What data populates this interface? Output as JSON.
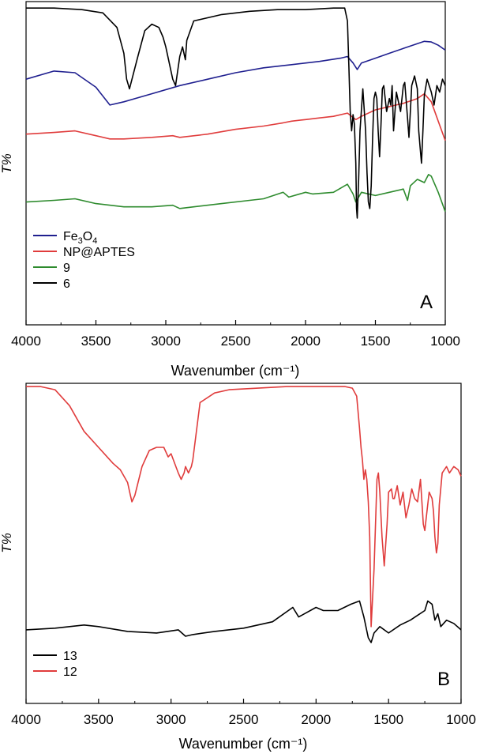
{
  "figure": {
    "panels": [
      {
        "panel_label": "A",
        "ylabel": "T%",
        "xlabel": "Wavenumber (cm⁻¹)"
      },
      {
        "panel_label": "B",
        "ylabel": "T%",
        "xlabel": "Wavenumber (cm⁻¹)"
      }
    ]
  },
  "chart_data": [
    {
      "type": "line",
      "panel_label": "A",
      "xlabel": "Wavenumber (cm⁻¹)",
      "ylabel": "T%",
      "xlim": [
        4000,
        1000
      ],
      "x_reversed": true,
      "ylim": [
        0,
        100
      ],
      "xticks": [
        4000,
        3500,
        3000,
        2500,
        2000,
        1500,
        1000
      ],
      "yticks_visible": false,
      "grid": false,
      "legend_position": "bottom-left",
      "series": [
        {
          "name": "Fe3O4",
          "legend_main": "Fe",
          "legend_sub1": "3",
          "legend_mid": "O",
          "legend_sub2": "4",
          "color": "#1f1f8f",
          "x": [
            4000,
            3800,
            3650,
            3500,
            3400,
            3300,
            3100,
            2900,
            2700,
            2500,
            2300,
            2100,
            1900,
            1750,
            1700,
            1660,
            1630,
            1600,
            1500,
            1400,
            1300,
            1200,
            1150,
            1100,
            1050,
            1000
          ],
          "y": [
            76,
            78.5,
            78,
            73.5,
            68,
            69,
            71.5,
            74,
            76,
            78,
            79.5,
            80.5,
            81.5,
            82.5,
            83,
            81,
            79,
            81,
            82.5,
            84,
            85.5,
            87,
            87.7,
            87.5,
            86.5,
            85
          ]
        },
        {
          "name": "NP@APTES",
          "color": "#e03c3c",
          "x": [
            4000,
            3800,
            3650,
            3500,
            3400,
            3300,
            3100,
            2950,
            2900,
            2700,
            2500,
            2300,
            2160,
            2100,
            2000,
            1900,
            1800,
            1700,
            1640,
            1600,
            1500,
            1400,
            1300,
            1200,
            1150,
            1100,
            1050,
            1000
          ],
          "y": [
            59,
            59.5,
            60,
            58.5,
            57.5,
            57.5,
            58,
            58.5,
            58,
            59,
            60.5,
            61.5,
            62.5,
            63,
            63.5,
            64,
            64.5,
            65.5,
            63.5,
            64.5,
            66.5,
            67.5,
            68.5,
            70,
            71.5,
            69,
            63,
            57
          ]
        },
        {
          "name": "9",
          "color": "#2e8b2e",
          "x": [
            4000,
            3800,
            3650,
            3500,
            3300,
            3100,
            2950,
            2900,
            2800,
            2600,
            2400,
            2300,
            2160,
            2120,
            2000,
            1950,
            1800,
            1700,
            1660,
            1640,
            1600,
            1500,
            1400,
            1300,
            1270,
            1250,
            1200,
            1150,
            1120,
            1100,
            1050,
            1000
          ],
          "y": [
            38,
            38.5,
            39,
            37.5,
            36.5,
            36.5,
            37,
            36,
            36.5,
            37.5,
            38.5,
            39,
            41,
            39.5,
            41,
            40.5,
            41,
            43.5,
            40.5,
            38,
            41,
            40,
            41,
            42,
            38.5,
            43,
            45,
            44,
            46.5,
            46,
            41,
            35
          ]
        },
        {
          "name": "6",
          "color": "#000000",
          "x": [
            4000,
            3800,
            3600,
            3450,
            3350,
            3300,
            3280,
            3260,
            3200,
            3150,
            3100,
            3050,
            3020,
            3000,
            2950,
            2930,
            2900,
            2880,
            2860,
            2850,
            2800,
            2600,
            2400,
            2200,
            2000,
            1800,
            1720,
            1700,
            1690,
            1680,
            1670,
            1660,
            1650,
            1640,
            1635,
            1630,
            1620,
            1610,
            1590,
            1570,
            1560,
            1550,
            1540,
            1530,
            1520,
            1510,
            1500,
            1490,
            1480,
            1470,
            1460,
            1450,
            1440,
            1420,
            1400,
            1390,
            1380,
            1370,
            1360,
            1350,
            1340,
            1320,
            1300,
            1290,
            1270,
            1260,
            1250,
            1240,
            1220,
            1200,
            1190,
            1180,
            1170,
            1160,
            1150,
            1130,
            1100,
            1080,
            1060,
            1040,
            1020,
            1000
          ],
          "y": [
            98,
            98,
            97.5,
            96.5,
            92,
            84,
            76,
            73,
            83,
            91,
            93,
            92,
            89,
            86,
            76,
            74,
            83,
            86,
            82,
            88,
            94,
            96,
            97,
            97.5,
            97.5,
            98,
            98,
            94,
            80,
            66,
            60,
            65,
            62,
            50,
            36,
            33,
            45,
            60,
            73,
            60,
            47,
            38,
            36,
            43,
            58,
            70,
            72,
            70,
            60,
            52,
            62,
            73,
            74,
            66,
            70,
            68,
            74,
            60,
            66,
            72,
            70,
            66,
            74,
            75,
            64,
            58,
            66,
            74,
            77,
            73,
            60,
            55,
            50,
            60,
            71,
            76,
            72,
            68,
            74,
            72,
            76,
            74
          ]
        }
      ]
    },
    {
      "type": "line",
      "panel_label": "B",
      "xlabel": "Wavenumber (cm⁻¹)",
      "ylabel": "T%",
      "xlim": [
        4000,
        1000
      ],
      "x_reversed": true,
      "ylim": [
        0,
        100
      ],
      "xticks": [
        4000,
        3500,
        3000,
        2500,
        2000,
        1500,
        1000
      ],
      "yticks_visible": false,
      "grid": false,
      "legend_position": "bottom-left",
      "series": [
        {
          "name": "13",
          "color": "#000000",
          "x": [
            4000,
            3800,
            3600,
            3500,
            3300,
            3100,
            2950,
            2900,
            2850,
            2700,
            2500,
            2300,
            2160,
            2120,
            2000,
            1950,
            1850,
            1760,
            1700,
            1670,
            1640,
            1620,
            1600,
            1560,
            1500,
            1420,
            1350,
            1300,
            1250,
            1230,
            1200,
            1180,
            1160,
            1140,
            1100,
            1050,
            1000
          ],
          "y": [
            23,
            23.5,
            24.5,
            24,
            22.5,
            22,
            23,
            21,
            21.5,
            22.5,
            23.5,
            25.5,
            30,
            27,
            30,
            29,
            29,
            31,
            32,
            27,
            20.5,
            19,
            22,
            24,
            22,
            24.5,
            26,
            27.5,
            29,
            32,
            31,
            26,
            28,
            24,
            26,
            25,
            23
          ]
        },
        {
          "name": "12",
          "color": "#e03c3c",
          "x": [
            4000,
            3900,
            3800,
            3700,
            3600,
            3500,
            3400,
            3350,
            3300,
            3280,
            3270,
            3250,
            3200,
            3150,
            3100,
            3050,
            3020,
            3000,
            2950,
            2930,
            2910,
            2900,
            2880,
            2860,
            2850,
            2800,
            2700,
            2600,
            2400,
            2200,
            2000,
            1800,
            1750,
            1720,
            1700,
            1690,
            1680,
            1670,
            1660,
            1650,
            1640,
            1630,
            1620,
            1600,
            1580,
            1570,
            1560,
            1545,
            1530,
            1510,
            1500,
            1480,
            1470,
            1460,
            1440,
            1420,
            1400,
            1380,
            1370,
            1360,
            1340,
            1320,
            1300,
            1280,
            1260,
            1250,
            1240,
            1220,
            1200,
            1190,
            1180,
            1170,
            1160,
            1150,
            1130,
            1100,
            1080,
            1050,
            1020,
            1000
          ],
          "y": [
            99,
            99,
            98,
            93,
            85,
            80,
            75,
            73,
            69,
            65,
            63,
            65,
            74,
            79,
            80,
            80,
            77,
            78,
            72,
            70,
            72,
            74,
            72,
            74,
            76,
            94,
            97,
            98,
            98.5,
            99,
            99,
            99,
            98.5,
            96,
            86,
            80,
            76,
            70,
            73,
            70,
            63,
            52,
            24,
            42,
            70,
            72,
            66,
            52,
            43,
            56,
            66,
            67,
            64,
            64,
            68,
            62,
            66,
            58,
            60,
            62,
            67,
            64,
            63,
            70,
            56,
            54,
            58,
            66,
            64,
            60,
            52,
            47,
            50,
            62,
            72,
            74,
            72,
            74,
            73,
            71
          ]
        }
      ]
    }
  ]
}
